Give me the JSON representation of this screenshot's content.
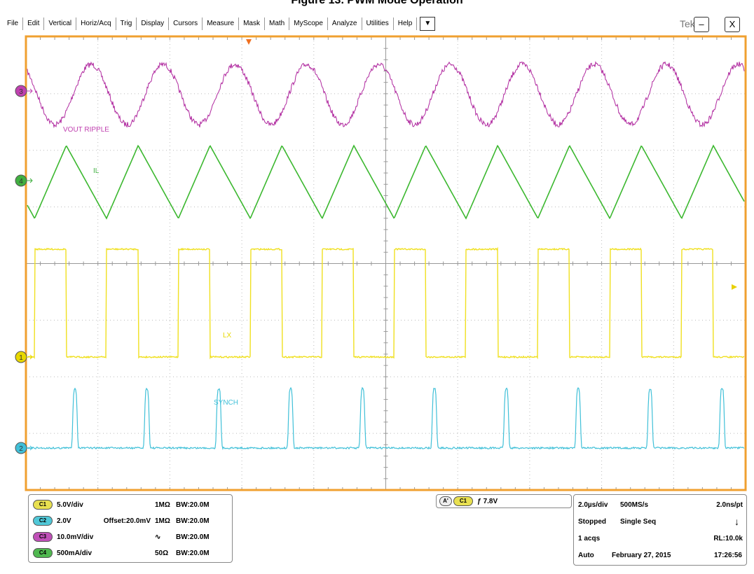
{
  "title": "Figure 13. PWM Mode Operation",
  "menu": [
    "File",
    "Edit",
    "Vertical",
    "Horiz/Acq",
    "Trig",
    "Display",
    "Cursors",
    "Measure",
    "Mask",
    "Math",
    "MyScope",
    "Analyze",
    "Utilities",
    "Help",
    "▼"
  ],
  "logo": "Tek",
  "window_buttons": [
    "–",
    "X"
  ],
  "traces": [
    {
      "number": "3",
      "label": "VOUT RIPPLE"
    },
    {
      "number": "4",
      "label": "IL"
    },
    {
      "number": "1",
      "label": "LX"
    },
    {
      "number": "2",
      "label": "SYNCH"
    }
  ],
  "channels": [
    {
      "badge": "C1",
      "scale": "5.0V/div",
      "offset": "",
      "coupling": "1MΩ",
      "bandwidth": "BW:20.0M"
    },
    {
      "badge": "C2",
      "scale": "2.0V",
      "offset": "Offset:20.0mV",
      "coupling": "1MΩ",
      "bandwidth": "BW:20.0M"
    },
    {
      "badge": "C3",
      "scale": "10.0mV/div",
      "offset": "",
      "coupling": "∿",
      "bandwidth": "BW:20.0M"
    },
    {
      "badge": "C4",
      "scale": "500mA/div",
      "offset": "",
      "coupling": "50Ω",
      "bandwidth": "BW:20.0M"
    }
  ],
  "trigger": {
    "mode": "A'",
    "source": "C1",
    "slope": "ƒ",
    "level": "7.8V"
  },
  "acquisition": [
    [
      "2.0µs/div",
      "500MS/s",
      "2.0ns/pt"
    ],
    [
      "Stopped",
      "Single Seq",
      "↓"
    ],
    [
      "1 acqs",
      "",
      "RL:10.0k"
    ],
    [
      "Auto",
      "February 27, 2015",
      "17:26:56"
    ]
  ]
}
